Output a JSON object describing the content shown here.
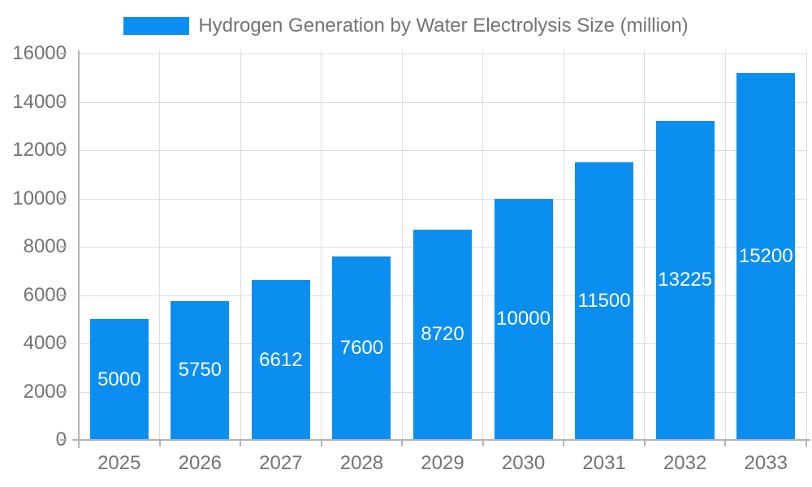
{
  "chart_data": {
    "type": "bar",
    "title": "Hydrogen Generation by Water Electrolysis Size (million)",
    "categories": [
      "2025",
      "2026",
      "2027",
      "2028",
      "2029",
      "2030",
      "2031",
      "2032",
      "2033"
    ],
    "values": [
      5000,
      5750,
      6612,
      7600,
      8720,
      10000,
      11500,
      13225,
      15200
    ],
    "series": [
      {
        "name": "Hydrogen Generation by Water Electrolysis Size (million)",
        "values": [
          5000,
          5750,
          6612,
          7600,
          8720,
          10000,
          11500,
          13225,
          15200
        ]
      }
    ],
    "xlabel": "",
    "ylabel": "",
    "ylim": [
      0,
      16000
    ],
    "ytick_step": 2000,
    "ytick_labels": [
      "0",
      "2000",
      "4000",
      "6000",
      "8000",
      "10000",
      "12000",
      "14000",
      "16000"
    ],
    "grid": true,
    "legend_position": "top-center",
    "colors": {
      "bar": "#0a8ff0",
      "bar_value_label": "#ffffff",
      "axis_line": "#b3b3b3",
      "gridline": "#dedede",
      "text": "#737373",
      "background": "#ffffff"
    }
  }
}
